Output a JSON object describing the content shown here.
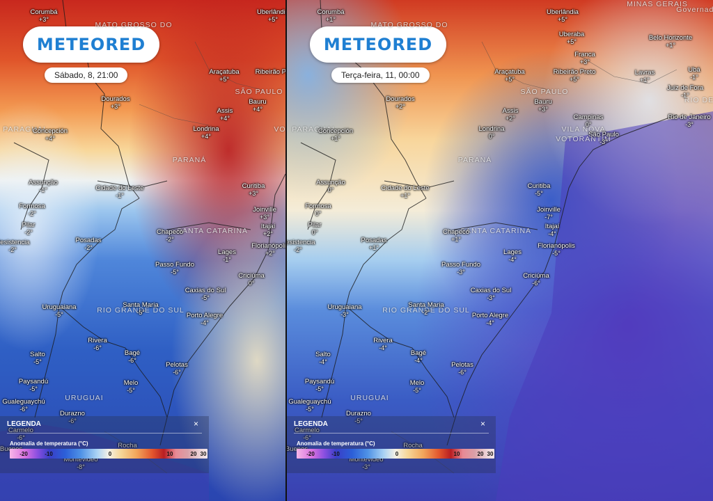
{
  "logo_text": "METEORED",
  "legend": {
    "title": "LEGENDA",
    "subtitle": "Anomalia de temperatura (°C)",
    "close": "×",
    "ticks": [
      "-20",
      "-10",
      "0",
      "10",
      "20",
      "30"
    ]
  },
  "panels": [
    {
      "date": "Sábado, 8, 21:00",
      "cities": [
        [
          "Corumbá",
          "+3°"
        ],
        [
          "Uberlândia",
          "+5°"
        ],
        [
          "Araçatuba",
          "+5°"
        ],
        [
          "Ribeirão Preto",
          ""
        ],
        [
          "Dourados",
          "+3°"
        ],
        [
          "Assis",
          "+4°"
        ],
        [
          "Bauru",
          "+4°"
        ],
        [
          "Concepción",
          "+4°"
        ],
        [
          "Londrina",
          "+4°"
        ],
        [
          "Assunção",
          "-1°"
        ],
        [
          "Cidade do Leste",
          "-1°"
        ],
        [
          "Curitiba",
          "+3°"
        ],
        [
          "Formosa",
          "-2°"
        ],
        [
          "Joinville",
          "+3°"
        ],
        [
          "Itajaí",
          "+2°"
        ],
        [
          "Pilar",
          "-2°"
        ],
        [
          "Chapecó",
          "-2°"
        ],
        [
          "Florianópolis",
          "+2°"
        ],
        [
          "Resistencia",
          "-2°"
        ],
        [
          "Posadas",
          "-2°"
        ],
        [
          "Lages",
          "-1°"
        ],
        [
          "Passo Fundo",
          "-5°"
        ],
        [
          "Criciúma",
          "0°"
        ],
        [
          "Caxias do Sul",
          "-5°"
        ],
        [
          "Uruguaiana",
          "-5°"
        ],
        [
          "Santa Maria",
          "-5°"
        ],
        [
          "Porto Alegre",
          "-4°"
        ],
        [
          "Rivera",
          "-6°"
        ],
        [
          "Salto",
          "-5°"
        ],
        [
          "Bagé",
          "-6°"
        ],
        [
          "Pelotas",
          "-6°"
        ],
        [
          "Paysandú",
          "-5°"
        ],
        [
          "Melo",
          "-5°"
        ],
        [
          "Gualeguaychú",
          "-6°"
        ],
        [
          "Durazno",
          "-6°"
        ],
        [
          "Carmelo",
          "-6°"
        ],
        [
          "Rocha",
          ""
        ],
        [
          "Buenos",
          ""
        ],
        [
          "Montevideo",
          "-8°"
        ]
      ],
      "regions": [
        "MATO GROSSO DO",
        "SÃO PAULO",
        "PARAGUAI",
        "PARANÁ",
        "SANTA CATARINA",
        "RIO GRANDE DO SUL",
        "URUGUAI",
        "VO"
      ]
    },
    {
      "date": "Terça-feira, 11, 00:00",
      "cities": [
        [
          "Corumbá",
          "+1°"
        ],
        [
          "Uberlândia",
          "+5°"
        ],
        [
          "Uberaba",
          "+5°"
        ],
        [
          "Belo Horizonte",
          "+1°"
        ],
        [
          "Franca",
          "+3°"
        ],
        [
          "Ubá",
          "-1°"
        ],
        [
          "Araçatuba",
          "+5°"
        ],
        [
          "Ribeirão Preto",
          "+5°"
        ],
        [
          "Lavras",
          "+1°"
        ],
        [
          "Juiz de Fora",
          "-1°"
        ],
        [
          "Dourados",
          "+2°"
        ],
        [
          "Bauru",
          "+3°"
        ],
        [
          "Assis",
          "+2°"
        ],
        [
          "Campinas",
          "0°"
        ],
        [
          "Rio de Janeiro",
          "-3°"
        ],
        [
          "Concepción",
          "+1°"
        ],
        [
          "Londrina",
          "0°"
        ],
        [
          "São Paulo",
          "-3°"
        ],
        [
          "Assunção",
          "0°"
        ],
        [
          "Cidade do Leste",
          "+1°"
        ],
        [
          "Curitiba",
          "-5°"
        ],
        [
          "Formosa",
          "0°"
        ],
        [
          "Joinville",
          "-7°"
        ],
        [
          "Pilar",
          "0°"
        ],
        [
          "Itajaí",
          "-4°"
        ],
        [
          "Chapecó",
          "+1°"
        ],
        [
          "Florianópolis",
          "-5°"
        ],
        [
          "Resistencia",
          "-2°"
        ],
        [
          "Posadas",
          "+1°"
        ],
        [
          "Lages",
          "-4°"
        ],
        [
          "Passo Fundo",
          "-3°"
        ],
        [
          "Criciúma",
          "-6°"
        ],
        [
          "Caxias do Sul",
          "-3°"
        ],
        [
          "Uruguaiana",
          "-3°"
        ],
        [
          "Santa Maria",
          "-2°"
        ],
        [
          "Porto Alegre",
          "-4°"
        ],
        [
          "Rivera",
          "-4°"
        ],
        [
          "Salto",
          "-4°"
        ],
        [
          "Bagé",
          "-4°"
        ],
        [
          "Pelotas",
          "-6°"
        ],
        [
          "Paysandú",
          "-5°"
        ],
        [
          "Melo",
          "-5°"
        ],
        [
          "Gualeguaychú",
          "-5°"
        ],
        [
          "Durazno",
          "-5°"
        ],
        [
          "Carmelo",
          "-6°"
        ],
        [
          "Rocha",
          ""
        ],
        [
          "Buenos",
          ""
        ],
        [
          "Montevideo",
          "-3°"
        ]
      ],
      "regions": [
        "MATO GROSSO DO",
        "SÃO PAULO",
        "PARAGUAI",
        "PARANÁ",
        "SANTA CATARINA",
        "RIO GRANDE DO SUL",
        "URUGUAI",
        "VILA NOVA",
        "VOTORANTIM",
        "RIO DE",
        "MINAS GERAIS",
        "Governador"
      ]
    }
  ]
}
